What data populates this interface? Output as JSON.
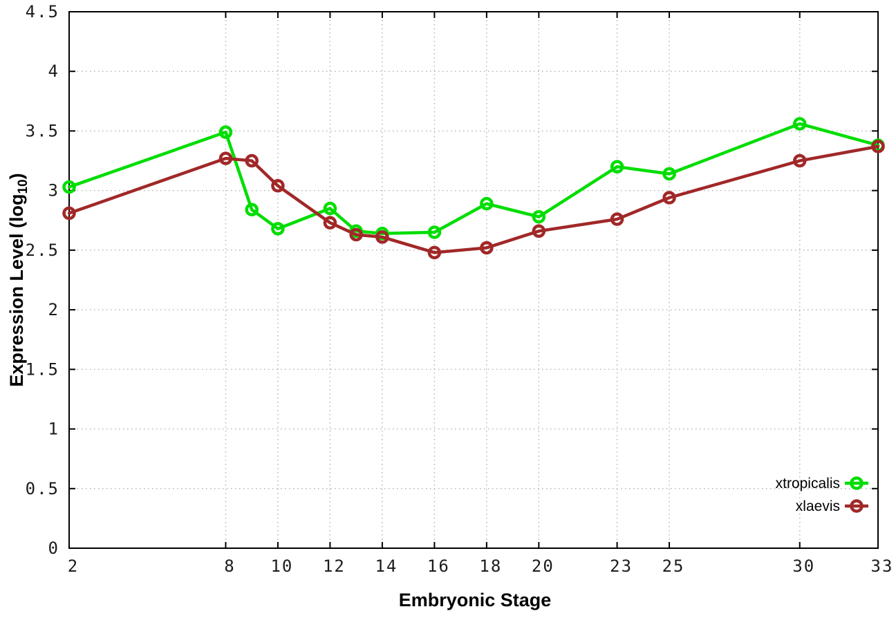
{
  "chart_data": {
    "type": "line",
    "title": "",
    "xlabel": "Embryonic Stage",
    "ylabel": {
      "pre": "Expression Level (log",
      "sub": "10",
      "post": ")"
    },
    "x": [
      2,
      8,
      9,
      10,
      12,
      13,
      14,
      16,
      18,
      20,
      23,
      25,
      30,
      33
    ],
    "series": [
      {
        "name": "xtropicalis",
        "color": "#00dd00",
        "values": [
          3.03,
          3.49,
          2.84,
          2.68,
          2.85,
          2.66,
          2.64,
          2.65,
          2.89,
          2.78,
          3.2,
          3.14,
          3.56,
          3.38
        ]
      },
      {
        "name": "xlaevis",
        "color": "#a12828",
        "values": [
          2.81,
          3.27,
          3.25,
          3.04,
          2.73,
          2.63,
          2.61,
          2.48,
          2.52,
          2.66,
          2.76,
          2.94,
          3.25,
          3.37
        ]
      }
    ],
    "xlim": [
      2,
      33
    ],
    "ylim": [
      0,
      4.5
    ],
    "xticks": [
      2,
      8,
      10,
      12,
      14,
      16,
      18,
      20,
      23,
      25,
      30,
      33
    ],
    "xtick_labels": [
      "2",
      "8",
      "10",
      "12",
      "14",
      "16",
      "18",
      "20",
      "23",
      "25",
      "30",
      "33"
    ],
    "yticks": [
      0,
      0.5,
      1,
      1.5,
      2,
      2.5,
      3,
      3.5,
      4,
      4.5
    ],
    "ytick_labels": [
      "0",
      "0.5",
      "1",
      "1.5",
      "2",
      "2.5",
      "3",
      "3.5",
      "4",
      "4.5"
    ],
    "grid": true,
    "legend_position": "bottom-right",
    "legend": [
      "xtropicalis",
      "xlaevis"
    ]
  }
}
